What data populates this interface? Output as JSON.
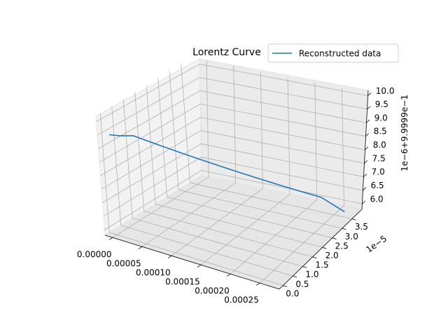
{
  "chart_data": {
    "type": "line",
    "projection": "3d",
    "title": "Lorentz Curve",
    "legend": {
      "location": "upper right",
      "entries": [
        "Reconstructed data"
      ]
    },
    "grid": true,
    "x_axis": {
      "label": "",
      "tick_labels": [
        "0.00000",
        "0.00005",
        "0.00010",
        "0.00015",
        "0.00020",
        "0.00025"
      ],
      "range": [
        -1.3e-05,
        0.000283
      ]
    },
    "y_axis": {
      "label": "",
      "offset_text": "1e−5",
      "tick_labels": [
        "0.0",
        "0.5",
        "1.0",
        "1.5",
        "2.0",
        "2.5",
        "3.0",
        "3.5"
      ],
      "range": [
        -1.9e-06,
        4e-05
      ]
    },
    "z_axis": {
      "label": "",
      "offset_text": "1e−6+9.9999e−1",
      "tick_labels": [
        "6.0",
        "6.5",
        "7.0",
        "7.5",
        "8.0",
        "8.5",
        "9.0",
        "9.5",
        "10.0"
      ],
      "range": [
        5.8,
        10.2
      ]
    },
    "series": [
      {
        "name": "Reconstructed data",
        "color": "#1f77b4",
        "x": [
          0.0,
          1.35e-05,
          2.7e-05,
          5.4e-05,
          8.1e-05,
          0.000108,
          0.000135,
          0.000162,
          0.000189,
          0.000216,
          0.000243,
          0.00027
        ],
        "y": [
          0.0,
          1e-06,
          3.5e-06,
          7e-06,
          1.05e-05,
          1.4e-05,
          1.75e-05,
          2.1e-05,
          2.45e-05,
          2.8e-05,
          3.15e-05,
          3.5e-05
        ],
        "z": [
          9.5,
          9.5,
          9.45,
          9.1,
          8.75,
          8.4,
          8.05,
          7.7,
          7.35,
          7.0,
          6.65,
          6.0
        ]
      }
    ]
  }
}
